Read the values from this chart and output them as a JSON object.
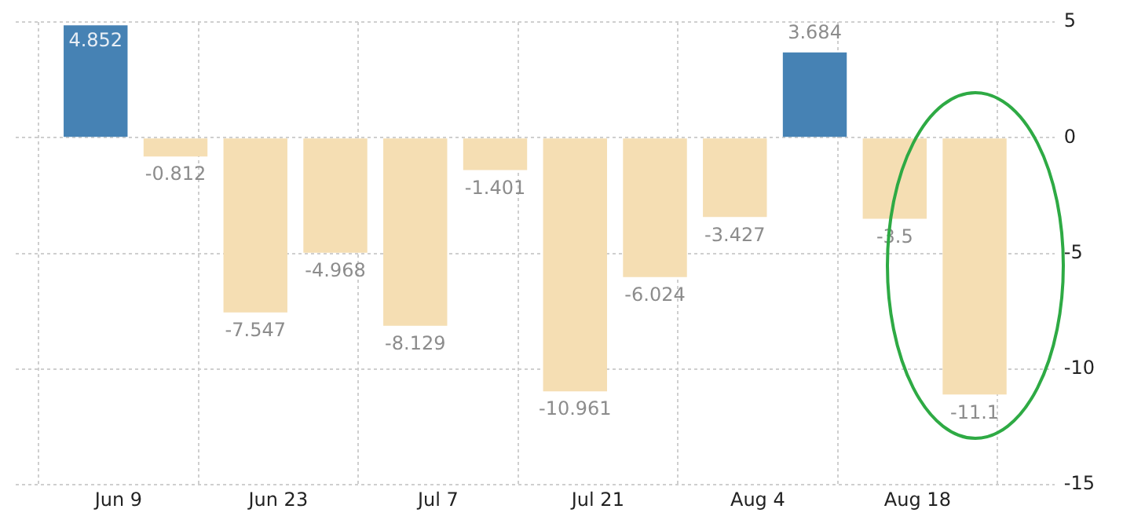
{
  "chart_data": {
    "type": "bar",
    "x": [
      "--06-07",
      "--06-14",
      "--06-21",
      "--06-28",
      "--07-05",
      "--07-12",
      "--07-19",
      "--07-26",
      "--08-02",
      "--08-09",
      "--08-16",
      "--08-23"
    ],
    "values": [
      4.852,
      -0.812,
      -7.547,
      -4.968,
      -8.129,
      -1.401,
      -10.961,
      -6.024,
      -3.427,
      3.684,
      -3.5,
      -11.1
    ],
    "colors": [
      "#4682b4",
      "#f5deb3",
      "#f5deb3",
      "#f5deb3",
      "#f5deb3",
      "#f5deb3",
      "#f5deb3",
      "#f5deb3",
      "#f5deb3",
      "#4682b4",
      "#f5deb3",
      "#f5deb3"
    ],
    "xlim": [
      "--05-31",
      "--08-30"
    ],
    "xticks": [
      {
        "value": "--06-09",
        "label": "Jun 9"
      },
      {
        "value": "--06-23",
        "label": "Jun 23"
      },
      {
        "value": "--07-07",
        "label": "Jul 7"
      },
      {
        "value": "--07-21",
        "label": "Jul 21"
      },
      {
        "value": "--08-04",
        "label": "Aug 4"
      },
      {
        "value": "--08-18",
        "label": "Aug 18"
      }
    ],
    "ylim": [
      -15,
      5
    ],
    "yticks": [
      5,
      0,
      -5,
      -10,
      -15
    ],
    "grid": true,
    "legend": false,
    "data_labels": true
  }
}
